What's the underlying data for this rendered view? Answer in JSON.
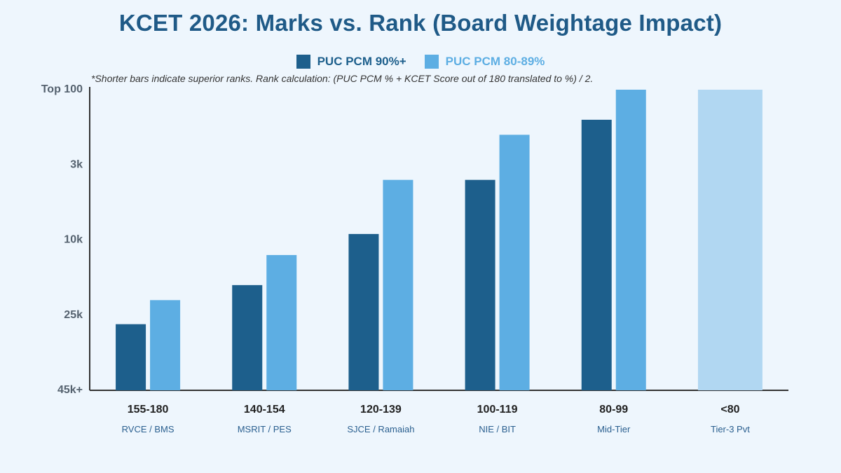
{
  "chart_data": {
    "type": "bar",
    "title": "KCET 2026: Marks vs. Rank (Board Weightage Impact)",
    "note": "*Shorter bars indicate superior ranks. Rank calculation: (PUC PCM % + KCET Score out of 180 translated to %) / 2.",
    "y_axis_note": "inverted rank scale; ticks non-linear",
    "y_ticks": [
      {
        "label": "Top 100",
        "level": 100
      },
      {
        "label": "3k",
        "level": 75
      },
      {
        "label": "10k",
        "level": 50
      },
      {
        "label": "25k",
        "level": 25
      },
      {
        "label": "45k+",
        "level": 0
      }
    ],
    "categories": [
      {
        "label": "155-180",
        "sublabel": "RVCE / BMS"
      },
      {
        "label": "140-154",
        "sublabel": "MSRIT / PES"
      },
      {
        "label": "120-139",
        "sublabel": "SJCE / Ramaiah"
      },
      {
        "label": "100-119",
        "sublabel": "NIE / BIT"
      },
      {
        "label": "80-99",
        "sublabel": "Mid-Tier"
      },
      {
        "label": "<80",
        "sublabel": "Tier-3 Pvt"
      }
    ],
    "series": [
      {
        "name": "PUC PCM 90%+",
        "color": "#1d5f8c",
        "values": [
          22,
          35,
          52,
          70,
          90,
          null
        ]
      },
      {
        "name": "PUC PCM 80-89%",
        "color": "#5daee3",
        "values": [
          30,
          45,
          70,
          85,
          100,
          null
        ]
      },
      {
        "name": "",
        "color": "#b1d7f2",
        "values": [
          null,
          null,
          null,
          null,
          null,
          100
        ]
      }
    ],
    "ylim": [
      0,
      100
    ],
    "grid": false,
    "legend_position": "top-center"
  }
}
